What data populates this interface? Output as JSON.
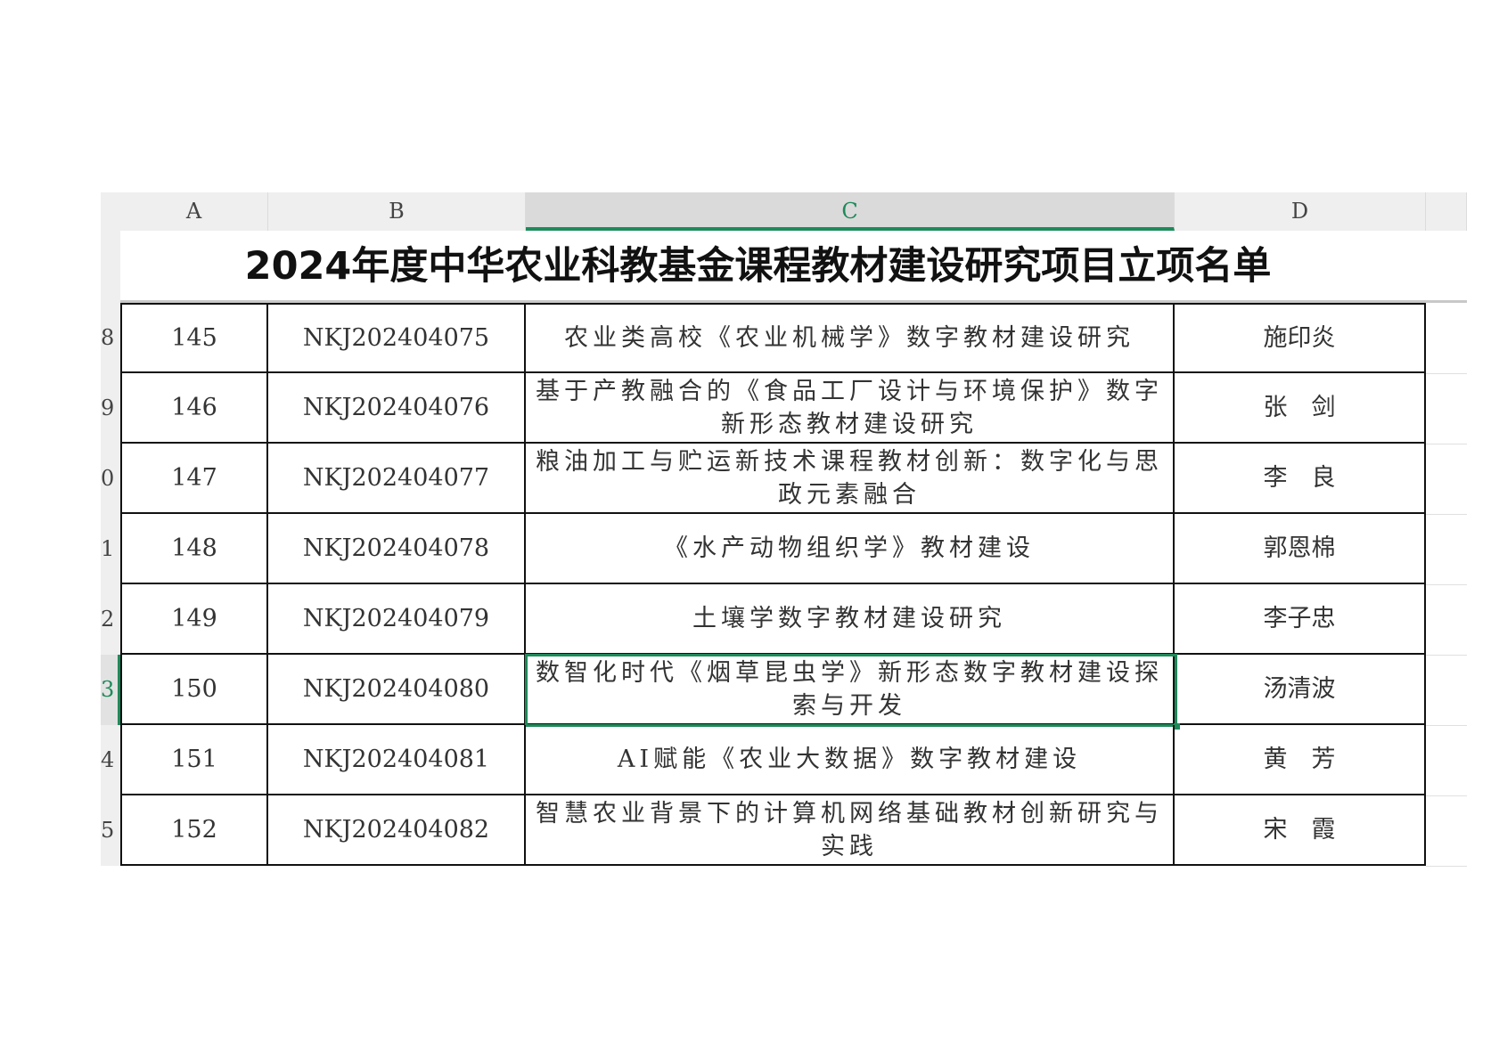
{
  "columns": [
    "A",
    "B",
    "C",
    "D"
  ],
  "selected_column": "C",
  "title": "2024年度中华农业科教基金课程教材建设研究项目立项名单",
  "rows": [
    {
      "row_label": "8",
      "no": "145",
      "code": "NKJ202404075",
      "name": "农业类高校《农业机械学》数字教材建设研究",
      "person": "施印炎"
    },
    {
      "row_label": "9",
      "no": "146",
      "code": "NKJ202404076",
      "name": "基于产教融合的《食品工厂设计与环境保护》数字新形态教材建设研究",
      "person": "张　剑"
    },
    {
      "row_label": "0",
      "no": "147",
      "code": "NKJ202404077",
      "name": "粮油加工与贮运新技术课程教材创新：数字化与思政元素融合",
      "person": "李　良"
    },
    {
      "row_label": "1",
      "no": "148",
      "code": "NKJ202404078",
      "name": "《水产动物组织学》教材建设",
      "person": "郭恩棉"
    },
    {
      "row_label": "2",
      "no": "149",
      "code": "NKJ202404079",
      "name": "土壤学数字教材建设研究",
      "person": "李子忠"
    },
    {
      "row_label": "3",
      "no": "150",
      "code": "NKJ202404080",
      "name": "数智化时代《烟草昆虫学》新形态数字教材建设探索与开发",
      "person": "汤清波",
      "selected": true
    },
    {
      "row_label": "4",
      "no": "151",
      "code": "NKJ202404081",
      "name": "AI赋能《农业大数据》数字教材建设",
      "person": "黄　芳"
    },
    {
      "row_label": "5",
      "no": "152",
      "code": "NKJ202404082",
      "name": "智慧农业背景下的计算机网络基础教材创新研究与实践",
      "person": "宋　霞"
    }
  ],
  "colors": {
    "accent": "#1e8a5a",
    "header_bg": "#efefef",
    "grid": "#111111"
  }
}
